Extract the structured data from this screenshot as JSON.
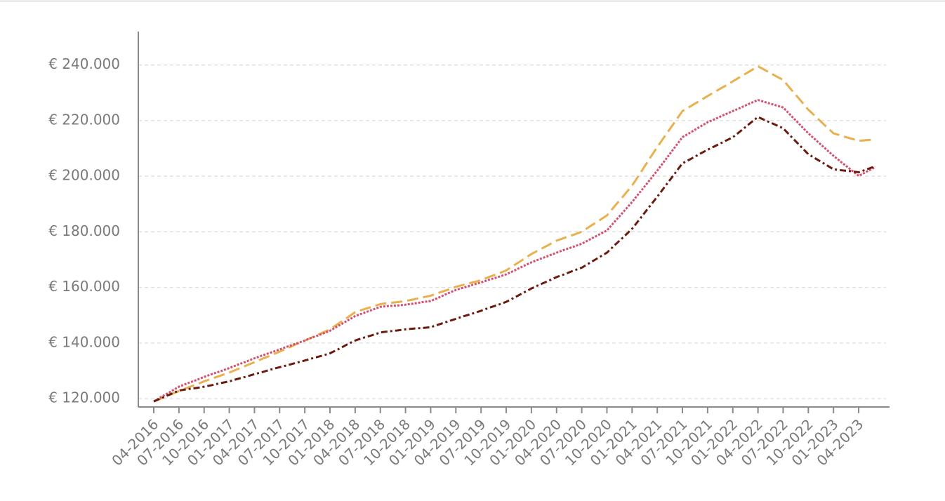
{
  "chart_data": {
    "type": "line",
    "categories": [
      "04-2016",
      null,
      null,
      "07-2016",
      null,
      null,
      "10-2016",
      null,
      null,
      "01-2017",
      null,
      null,
      "04-2017",
      null,
      null,
      "07-2017",
      null,
      null,
      "10-2017",
      null,
      null,
      "01-2018",
      null,
      null,
      "04-2018",
      null,
      null,
      "07-2018",
      null,
      null,
      "10-2018",
      null,
      null,
      "01-2019",
      null,
      null,
      "04-2019",
      null,
      null,
      "07-2019",
      null,
      null,
      "10-2019",
      null,
      null,
      "01-2020",
      null,
      null,
      "04-2020",
      null,
      null,
      "07-2020",
      null,
      null,
      "10-2020",
      null,
      null,
      "01-2021",
      null,
      null,
      "04-2021",
      null,
      null,
      "07-2021",
      null,
      null,
      "10-2021",
      null,
      null,
      "01-2022",
      null,
      null,
      "04-2022",
      null,
      null,
      "07-2022",
      null,
      null,
      "10-2022",
      null,
      null,
      "01-2023",
      null,
      null,
      "04-2023",
      null,
      null
    ],
    "series": [
      {
        "color": "#e8b04f",
        "dash": "16 7",
        "values": [
          119000,
          120200,
          121500,
          122700,
          123900,
          125000,
          126200,
          127300,
          128300,
          129400,
          130600,
          131900,
          133100,
          134400,
          135600,
          136900,
          138200,
          139600,
          140900,
          142200,
          143600,
          144900,
          147000,
          149000,
          151100,
          152100,
          153000,
          154000,
          154400,
          154700,
          155100,
          155700,
          156400,
          157000,
          158100,
          159100,
          160200,
          161000,
          161800,
          162600,
          163800,
          164900,
          166100,
          168100,
          170000,
          172000,
          173600,
          175200,
          176800,
          177900,
          178900,
          180000,
          182000,
          183900,
          185900,
          189500,
          193000,
          196600,
          201200,
          205900,
          210500,
          214800,
          219100,
          223400,
          225200,
          227000,
          228800,
          230600,
          232300,
          234100,
          235900,
          237700,
          239500,
          237900,
          236200,
          234600,
          231000,
          227500,
          223900,
          221100,
          218200,
          215400,
          214500,
          213600,
          212700,
          213000,
          213200
        ]
      },
      {
        "color": "#d64f6e",
        "dash": "3 2",
        "values": [
          119000,
          120800,
          122500,
          124300,
          125500,
          126600,
          127800,
          128900,
          129900,
          131000,
          132200,
          133300,
          134500,
          135600,
          136600,
          137700,
          138800,
          139800,
          140900,
          142100,
          143200,
          144400,
          146200,
          147900,
          149700,
          150800,
          151900,
          153000,
          153300,
          153500,
          153800,
          154200,
          154700,
          155100,
          156400,
          157800,
          159100,
          160000,
          160900,
          161800,
          162800,
          163700,
          164700,
          166100,
          167600,
          169000,
          170200,
          171300,
          172500,
          173600,
          174600,
          175700,
          177300,
          178900,
          180500,
          183900,
          187300,
          190700,
          194500,
          198200,
          202000,
          206000,
          210000,
          214000,
          215800,
          217600,
          219400,
          220700,
          222100,
          223400,
          224700,
          226100,
          227400,
          226500,
          225600,
          224700,
          221600,
          218500,
          215400,
          212700,
          210000,
          207300,
          204900,
          202500,
          200100,
          201700,
          203300
        ]
      },
      {
        "color": "#6b1a0d",
        "dash": "9 4 3 4",
        "values": [
          119000,
          120300,
          121600,
          122900,
          123400,
          123800,
          124300,
          124900,
          125600,
          126200,
          127100,
          127900,
          128800,
          129600,
          130500,
          131300,
          132100,
          132900,
          133700,
          134600,
          135400,
          136300,
          137800,
          139400,
          140900,
          141900,
          142800,
          143800,
          144200,
          144500,
          144900,
          145200,
          145400,
          145700,
          146700,
          147700,
          148700,
          149700,
          150600,
          151600,
          152700,
          153700,
          154800,
          156400,
          158000,
          159600,
          161000,
          162300,
          163700,
          164800,
          166000,
          167100,
          168900,
          170700,
          172500,
          175400,
          178200,
          181100,
          184900,
          188800,
          192600,
          196600,
          200600,
          204600,
          206200,
          207900,
          209500,
          211000,
          212500,
          214000,
          216400,
          218900,
          221300,
          219900,
          218600,
          217200,
          214100,
          211000,
          207900,
          206100,
          204300,
          202500,
          202100,
          201800,
          201400,
          202500,
          203600
        ]
      }
    ],
    "ylim": [
      117000,
      252000
    ],
    "yticks": [
      {
        "value": 120000,
        "label": "€ 120.000"
      },
      {
        "value": 140000,
        "label": "€ 140.000"
      },
      {
        "value": 160000,
        "label": "€ 160.000"
      },
      {
        "value": 180000,
        "label": "€ 180.000"
      },
      {
        "value": 200000,
        "label": "€ 200.000"
      },
      {
        "value": 220000,
        "label": "€ 220.000"
      },
      {
        "value": 240000,
        "label": "€ 240.000"
      }
    ],
    "grid": true
  }
}
